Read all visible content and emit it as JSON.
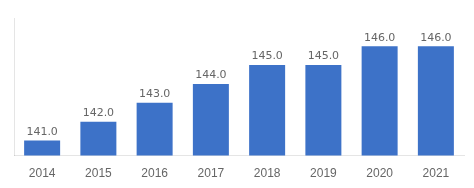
{
  "chart_data": {
    "type": "bar",
    "categories": [
      "2014",
      "2015",
      "2016",
      "2017",
      "2018",
      "2019",
      "2020",
      "2021"
    ],
    "values": [
      141.0,
      142.0,
      143.0,
      144.0,
      145.0,
      145.0,
      146.0,
      146.0
    ],
    "value_labels": [
      "141.0",
      "142.0",
      "143.0",
      "144.0",
      "145.0",
      "145.0",
      "146.0",
      "146.0"
    ],
    "color": "#3d72c8",
    "ylim": [
      140.2,
      147.5
    ],
    "data_labels": true,
    "tick_labels": "x",
    "grid": false
  }
}
